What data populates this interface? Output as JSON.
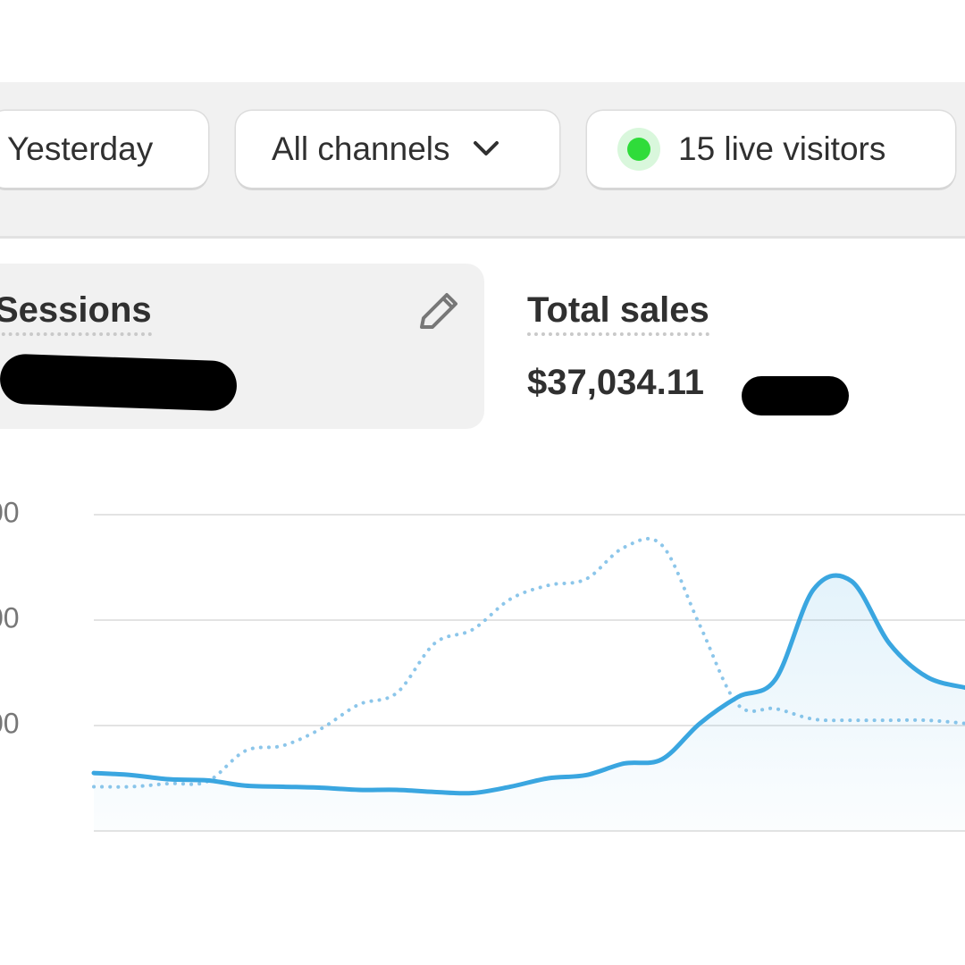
{
  "toolbar": {
    "date_button": "Yesterday",
    "channel_button": "All channels",
    "live_visitors": "15 live visitors"
  },
  "cards": {
    "sessions": {
      "title": "Sessions"
    },
    "total_sales": {
      "title": "Total sales",
      "value": "$37,034.11"
    }
  },
  "chart_data": {
    "type": "line",
    "ylim": [
      0,
      300
    ],
    "yticks": [
      {
        "value": 100,
        "label": "00"
      },
      {
        "value": 200,
        "label": "00"
      },
      {
        "value": 300,
        "label": "00"
      }
    ],
    "grid": true,
    "series": [
      {
        "color": "#3aa6e0",
        "style": "solid",
        "fill": true,
        "values": [
          55,
          53,
          49,
          48,
          43,
          42,
          41,
          39,
          39,
          37,
          36,
          42,
          50,
          53,
          64,
          68,
          102,
          127,
          144,
          229,
          237,
          178,
          146,
          136
        ]
      },
      {
        "color": "#8cc6ea",
        "style": "dotted",
        "fill": false,
        "values": [
          42,
          42,
          45,
          47,
          76,
          81,
          97,
          120,
          131,
          178,
          191,
          220,
          233,
          239,
          269,
          271,
          195,
          120,
          116,
          106,
          105,
          105,
          105,
          102
        ]
      }
    ]
  }
}
